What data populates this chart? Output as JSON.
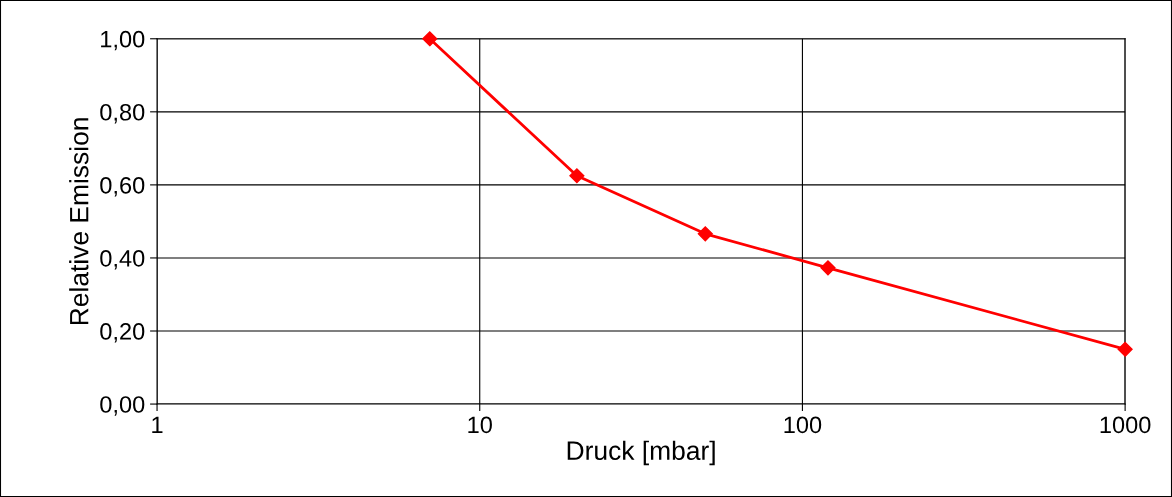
{
  "chart_data": {
    "type": "line",
    "xlabel": "Druck [mbar]",
    "ylabel": "Relative Emission",
    "x": [
      7,
      20,
      50,
      120,
      1000
    ],
    "series": [
      {
        "color": "#ff0000",
        "values": [
          1.0,
          0.625,
          0.466,
          0.373,
          0.15
        ]
      }
    ],
    "log": "x",
    "xlim": [
      1,
      1000
    ],
    "xticks": [
      1,
      10,
      100,
      1000
    ],
    "ylim": [
      0,
      1
    ],
    "yticks": [
      {
        "value": 0,
        "label": "0,00"
      },
      {
        "value": 0.2,
        "label": "0,20"
      },
      {
        "value": 0.4,
        "label": "0,40"
      },
      {
        "value": 0.6,
        "label": "0,60"
      },
      {
        "value": 0.8,
        "label": "0,80"
      },
      {
        "value": 1,
        "label": "1,00"
      }
    ],
    "grid": true,
    "marker": "diamond",
    "line_style": "solid"
  }
}
